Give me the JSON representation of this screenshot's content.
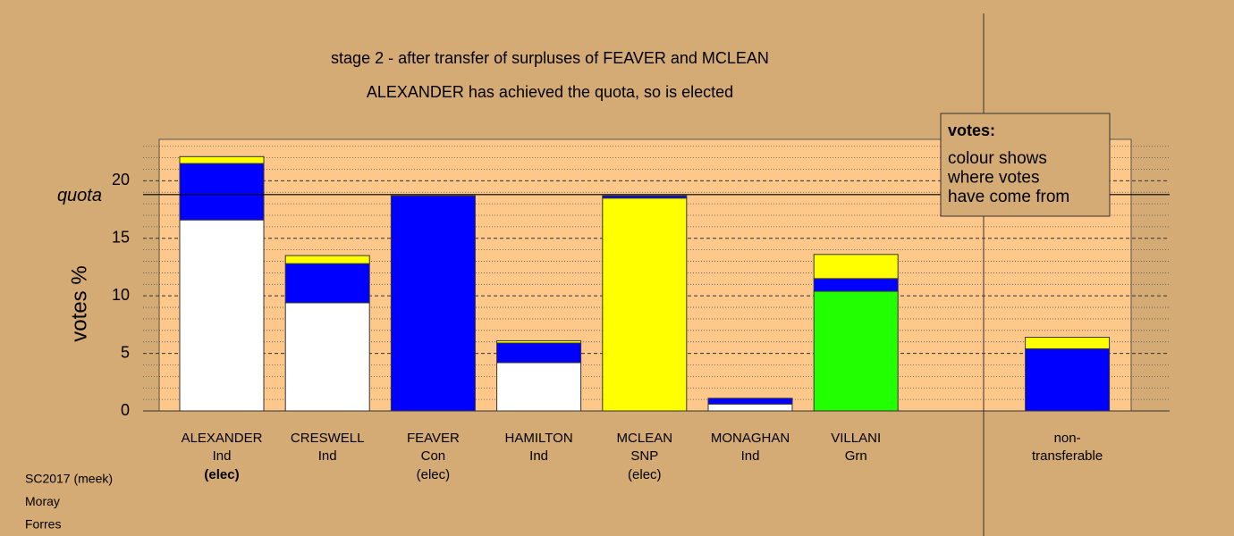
{
  "chart_data": {
    "type": "stacked-bar",
    "title": "stage 2 - after transfer of surpluses of FEAVER and MCLEAN",
    "subtitle": "ALEXANDER has achieved the quota, so is elected",
    "y_label": "votes %",
    "ylim": [
      0,
      23.6
    ],
    "yticks": [
      0,
      5,
      10,
      15,
      20
    ],
    "minor_yticks": [
      1,
      2,
      3,
      4,
      6,
      7,
      8,
      9,
      11,
      12,
      13,
      14,
      16,
      17,
      18,
      19,
      21,
      22,
      23
    ],
    "quota": {
      "label": "quota",
      "value": 18.8
    },
    "candidates": [
      {
        "name": "ALEXANDER",
        "party": "Ind",
        "status": "(elec)",
        "segments": [
          {
            "color": "#ffffff",
            "value": 16.6
          },
          {
            "color": "#0000ff",
            "value": 4.9
          },
          {
            "color": "#ffff00",
            "value": 0.6
          }
        ]
      },
      {
        "name": "CRESWELL",
        "party": "Ind",
        "segments": [
          {
            "color": "#ffffff",
            "value": 9.4
          },
          {
            "color": "#0000ff",
            "value": 3.4
          },
          {
            "color": "#ffff00",
            "value": 0.7
          }
        ]
      },
      {
        "name": "FEAVER",
        "party": "Con",
        "status": "(elec)",
        "segments": [
          {
            "color": "#0000ff",
            "value": 18.7
          }
        ]
      },
      {
        "name": "HAMILTON",
        "party": "Ind",
        "segments": [
          {
            "color": "#ffffff",
            "value": 4.2
          },
          {
            "color": "#0000ff",
            "value": 1.7
          },
          {
            "color": "#ffff00",
            "value": 0.2
          }
        ]
      },
      {
        "name": "MCLEAN",
        "party": "SNP",
        "status": "(elec)",
        "segments": [
          {
            "color": "#ffff00",
            "value": 18.5
          },
          {
            "color": "#0000ff",
            "value": 0.2
          }
        ]
      },
      {
        "name": "MONAGHAN",
        "party": "Ind",
        "segments": [
          {
            "color": "#ffffff",
            "value": 0.6
          },
          {
            "color": "#0000ff",
            "value": 0.5
          }
        ]
      },
      {
        "name": "VILLANI",
        "party": "Grn",
        "segments": [
          {
            "color": "#22ff00",
            "value": 10.4
          },
          {
            "color": "#0000ff",
            "value": 1.1
          },
          {
            "color": "#ffff00",
            "value": 2.1
          }
        ]
      }
    ],
    "non_transferable": {
      "name_lines": [
        "non-",
        "transferable"
      ],
      "segments": [
        {
          "color": "#0000ff",
          "value": 5.4
        },
        {
          "color": "#ffff00",
          "value": 1.0
        }
      ]
    },
    "legend": {
      "title": "votes:",
      "lines": [
        "colour shows",
        "where votes",
        "have come from"
      ]
    },
    "footer": [
      "SC2017 (meek)",
      "Moray",
      "Forres"
    ]
  }
}
